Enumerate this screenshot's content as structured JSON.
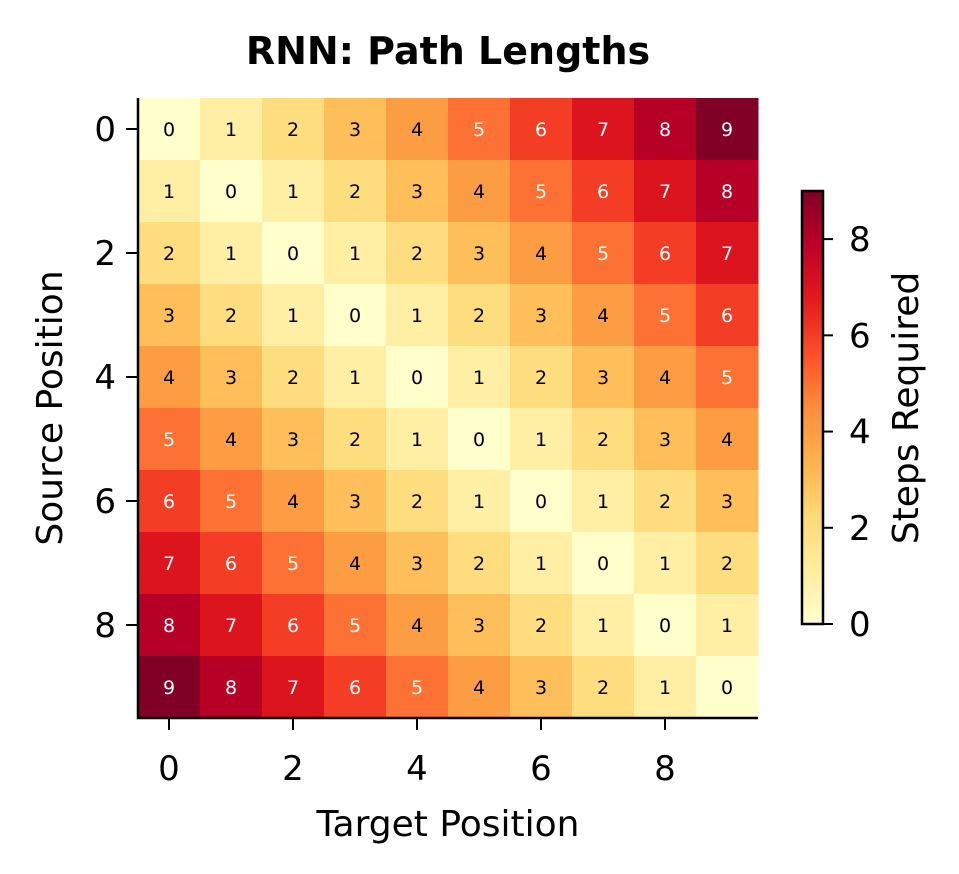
{
  "chart_data": {
    "type": "heatmap",
    "title": "RNN: Path Lengths",
    "xlabel": "Target Position",
    "ylabel": "Source Position",
    "x_ticks": [
      0,
      2,
      4,
      6,
      8
    ],
    "y_ticks": [
      0,
      2,
      4,
      6,
      8
    ],
    "matrix": [
      [
        0,
        1,
        2,
        3,
        4,
        5,
        6,
        7,
        8,
        9
      ],
      [
        1,
        0,
        1,
        2,
        3,
        4,
        5,
        6,
        7,
        8
      ],
      [
        2,
        1,
        0,
        1,
        2,
        3,
        4,
        5,
        6,
        7
      ],
      [
        3,
        2,
        1,
        0,
        1,
        2,
        3,
        4,
        5,
        6
      ],
      [
        4,
        3,
        2,
        1,
        0,
        1,
        2,
        3,
        4,
        5
      ],
      [
        5,
        4,
        3,
        2,
        1,
        0,
        1,
        2,
        3,
        4
      ],
      [
        6,
        5,
        4,
        3,
        2,
        1,
        0,
        1,
        2,
        3
      ],
      [
        7,
        6,
        5,
        4,
        3,
        2,
        1,
        0,
        1,
        2
      ],
      [
        8,
        7,
        6,
        5,
        4,
        3,
        2,
        1,
        0,
        1
      ],
      [
        9,
        8,
        7,
        6,
        5,
        4,
        3,
        2,
        1,
        0
      ]
    ],
    "colorbar": {
      "label": "Steps Required",
      "ticks": [
        0,
        2,
        4,
        6,
        8
      ],
      "range": [
        0,
        9
      ],
      "colormap": "YlOrRd"
    }
  }
}
